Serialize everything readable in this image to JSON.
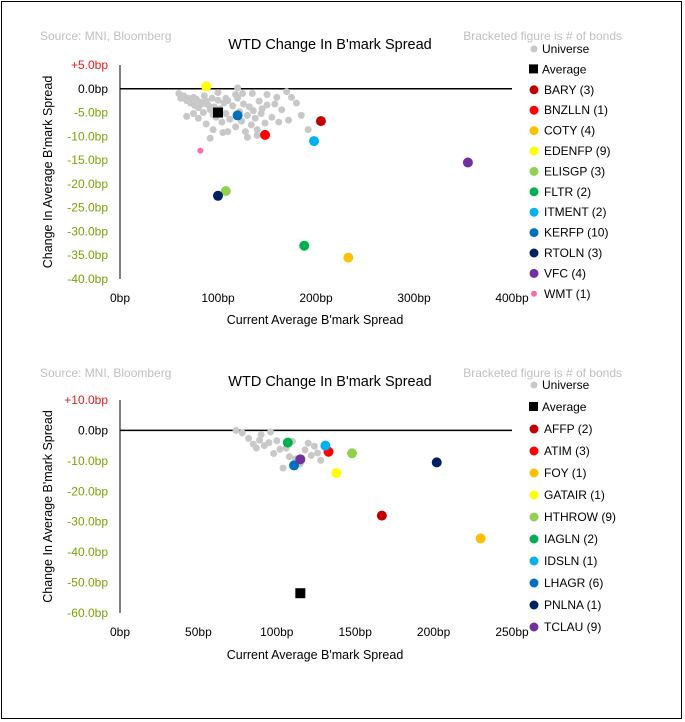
{
  "chart_data": [
    {
      "type": "scatter",
      "source": "Source: MNI, Bloomberg",
      "note": "Bracketed figure is # of bonds",
      "title": "WTD Change In B'mark Spread",
      "xlabel": "Current Average B'mark Spread",
      "ylabel": "Change In Average B'mark Spread",
      "xlim": [
        0,
        400
      ],
      "ylim": [
        -40,
        5
      ],
      "x_ticks": [
        0,
        100,
        200,
        300,
        400
      ],
      "x_tick_labels": [
        "0bp",
        "100bp",
        "200bp",
        "300bp",
        "400bp"
      ],
      "y_ticks": [
        5,
        0,
        -5,
        -10,
        -15,
        -20,
        -25,
        -30,
        -35,
        -40
      ],
      "y_tick_labels": [
        "+5.0bp",
        "0.0bp",
        "-5.0bp",
        "-10.0bp",
        "-15.0bp",
        "-20.0bp",
        "-25.0bp",
        "-30.0bp",
        "-35.0bp",
        "-40.0bp"
      ],
      "y_tick_colors": [
        "#e31a1c",
        "#000000",
        "#7aa300",
        "#7aa300",
        "#7aa300",
        "#7aa300",
        "#7aa300",
        "#7aa300",
        "#7aa300",
        "#7aa300"
      ],
      "legend_position": "right",
      "universe": {
        "name": "Universe",
        "color": "#c8c8c8",
        "points": [
          [
            60,
            -1
          ],
          [
            62,
            -2
          ],
          [
            65,
            -1.5
          ],
          [
            68,
            -2.5
          ],
          [
            70,
            -2
          ],
          [
            72,
            -3
          ],
          [
            75,
            -1.8
          ],
          [
            76,
            -3.5
          ],
          [
            78,
            -2.2
          ],
          [
            80,
            -4
          ],
          [
            82,
            -2.8
          ],
          [
            84,
            -3.2
          ],
          [
            85,
            -5
          ],
          [
            86,
            -1.5
          ],
          [
            88,
            -2.6
          ],
          [
            90,
            -3.4
          ],
          [
            92,
            -4.4
          ],
          [
            94,
            -2
          ],
          [
            95,
            -5.5
          ],
          [
            96,
            -3.8
          ],
          [
            98,
            -6
          ],
          [
            100,
            -2.4
          ],
          [
            102,
            -4.2
          ],
          [
            104,
            -7
          ],
          [
            106,
            -3
          ],
          [
            108,
            -5.2
          ],
          [
            110,
            -2.5
          ],
          [
            112,
            -6.4
          ],
          [
            115,
            -3.6
          ],
          [
            118,
            -8
          ],
          [
            120,
            -2
          ],
          [
            122,
            -4.8
          ],
          [
            124,
            -6.8
          ],
          [
            126,
            -3.2
          ],
          [
            128,
            -9
          ],
          [
            130,
            -5.6
          ],
          [
            132,
            -3.8
          ],
          [
            134,
            -7.6
          ],
          [
            136,
            -4.6
          ],
          [
            138,
            -6.2
          ],
          [
            140,
            -8.6
          ],
          [
            142,
            -2.6
          ],
          [
            144,
            -5.2
          ],
          [
            148,
            -7.2
          ],
          [
            150,
            -3.4
          ],
          [
            155,
            -6
          ],
          [
            160,
            -1.8
          ],
          [
            165,
            -4.4
          ],
          [
            172,
            -6.6
          ],
          [
            180,
            -3
          ],
          [
            185,
            -5.6
          ],
          [
            192,
            -8.6
          ],
          [
            95,
            -8.6
          ],
          [
            92,
            -10.4
          ],
          [
            105,
            -9.2
          ],
          [
            110,
            -9
          ],
          [
            75,
            -5.2
          ],
          [
            68,
            -5.8
          ],
          [
            80,
            -6.2
          ],
          [
            130,
            -10.2
          ],
          [
            140,
            -9.8
          ],
          [
            100,
            -0.8
          ],
          [
            118,
            -1.2
          ],
          [
            108,
            -2
          ],
          [
            125,
            -1
          ],
          [
            88,
            -7.4
          ],
          [
            120,
            0.2
          ],
          [
            135,
            -1
          ],
          [
            175,
            -1.8
          ],
          [
            170,
            -0.6
          ],
          [
            150,
            -1.2
          ],
          [
            158,
            -3.2
          ],
          [
            162,
            -7
          ],
          [
            145,
            -4.2
          ]
        ]
      },
      "average": {
        "name": "Average",
        "color": "#000000",
        "x": 100,
        "y": -5
      },
      "series": [
        {
          "name": "BARY",
          "count": "(3)",
          "color": "#c00000",
          "x": 205,
          "y": -6.8
        },
        {
          "name": "BNZLLN",
          "count": "(1)",
          "color": "#ff0000",
          "x": 148,
          "y": -9.7
        },
        {
          "name": "COTY",
          "count": "(4)",
          "color": "#ffc000",
          "x": 233,
          "y": -35.5
        },
        {
          "name": "EDENFP",
          "count": "(9)",
          "color": "#ffff00",
          "x": 88,
          "y": 0.5
        },
        {
          "name": "ELISGP",
          "count": "(3)",
          "color": "#92d050",
          "x": 108,
          "y": -21.5
        },
        {
          "name": "FLTR",
          "count": "(2)",
          "color": "#00b050",
          "x": 188,
          "y": -33
        },
        {
          "name": "ITMENT",
          "count": "(2)",
          "color": "#00b0f0",
          "x": 198,
          "y": -11
        },
        {
          "name": "KERFP",
          "count": "(10)",
          "color": "#0070c0",
          "x": 120,
          "y": -5.6
        },
        {
          "name": "RTOLN",
          "count": "(3)",
          "color": "#002060",
          "x": 100,
          "y": -22.5
        },
        {
          "name": "VFC",
          "count": "(4)",
          "color": "#7030a0",
          "x": 355,
          "y": -15.5
        },
        {
          "name": "WMT",
          "count": "(1)",
          "color": "#ff69b4",
          "x": 82,
          "y": -13
        }
      ]
    },
    {
      "type": "scatter",
      "source": "Source: MNI, Bloomberg",
      "note": "Bracketed figure is # of bonds",
      "title": "WTD Change In B'mark Spread",
      "xlabel": "Current Average B'mark Spread",
      "ylabel": "Change In Average B'mark Spread",
      "xlim": [
        0,
        250
      ],
      "ylim": [
        -60,
        10
      ],
      "x_ticks": [
        0,
        50,
        100,
        150,
        200,
        250
      ],
      "x_tick_labels": [
        "0bp",
        "50bp",
        "100bp",
        "150bp",
        "200bp",
        "250bp"
      ],
      "y_ticks": [
        10,
        0,
        -10,
        -20,
        -30,
        -40,
        -50,
        -60
      ],
      "y_tick_labels": [
        "+10.0bp",
        "0.0bp",
        "-10.0bp",
        "-20.0bp",
        "-30.0bp",
        "-40.0bp",
        "-50.0bp",
        "-60.0bp"
      ],
      "y_tick_colors": [
        "#e31a1c",
        "#000000",
        "#7aa300",
        "#7aa300",
        "#7aa300",
        "#7aa300",
        "#7aa300",
        "#7aa300"
      ],
      "legend_position": "right",
      "universe": {
        "name": "Universe",
        "color": "#c8c8c8",
        "points": [
          [
            74,
            0
          ],
          [
            78,
            -0.8
          ],
          [
            82,
            -2.6
          ],
          [
            85,
            -4.5
          ],
          [
            87,
            -5.8
          ],
          [
            90,
            -1.4
          ],
          [
            92,
            -5
          ],
          [
            95,
            -4
          ],
          [
            98,
            -7.6
          ],
          [
            100,
            -3.4
          ],
          [
            102,
            -6.2
          ],
          [
            104,
            -12.4
          ],
          [
            106,
            -5.8
          ],
          [
            108,
            -8.6
          ],
          [
            110,
            -3.6
          ],
          [
            112,
            -9.4
          ],
          [
            115,
            -11
          ],
          [
            118,
            -6.4
          ],
          [
            120,
            -4.2
          ],
          [
            122,
            -8.2
          ],
          [
            124,
            -5.2
          ],
          [
            126,
            -7.4
          ],
          [
            128,
            -9.8
          ],
          [
            96,
            -0.5
          ],
          [
            89,
            -3.2
          ]
        ]
      },
      "average": {
        "name": "Average",
        "color": "#000000",
        "x": 115,
        "y": -53.5
      },
      "series": [
        {
          "name": "AFFP",
          "count": "(2)",
          "color": "#c00000",
          "x": 167,
          "y": -28
        },
        {
          "name": "ATIM",
          "count": "(3)",
          "color": "#ff0000",
          "x": 133,
          "y": -7
        },
        {
          "name": "FOY",
          "count": "(1)",
          "color": "#ffc000",
          "x": 230,
          "y": -35.5
        },
        {
          "name": "GATAIR",
          "count": "(1)",
          "color": "#ffff00",
          "x": 138,
          "y": -14
        },
        {
          "name": "HTHROW",
          "count": "(9)",
          "color": "#92d050",
          "x": 148,
          "y": -7.5
        },
        {
          "name": "IAGLN",
          "count": "(2)",
          "color": "#00b050",
          "x": 107,
          "y": -4
        },
        {
          "name": "IDSLN",
          "count": "(1)",
          "color": "#00b0f0",
          "x": 131,
          "y": -5
        },
        {
          "name": "LHAGR",
          "count": "(6)",
          "color": "#0070c0",
          "x": 111,
          "y": -11.5
        },
        {
          "name": "PNLNA",
          "count": "(1)",
          "color": "#002060",
          "x": 202,
          "y": -10.5
        },
        {
          "name": "TCLAU",
          "count": "(9)",
          "color": "#7030a0",
          "x": 115,
          "y": -9.5
        }
      ]
    }
  ]
}
